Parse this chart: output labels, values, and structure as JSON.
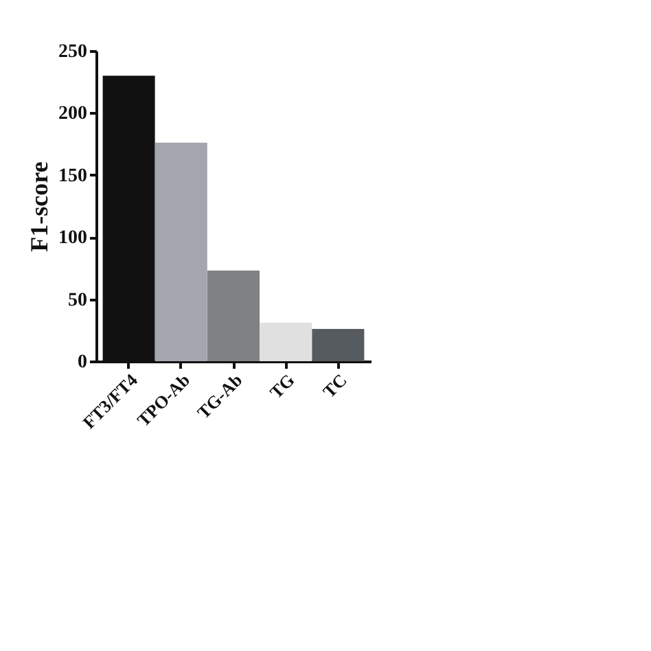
{
  "chart_data": {
    "type": "bar",
    "ylabel": "F1-score",
    "categories": [
      "FT3/FT4",
      "TPO-Ab",
      "TG-Ab",
      "TG",
      "TC"
    ],
    "values": [
      230,
      176,
      73,
      31,
      26
    ],
    "colors": [
      "#111111",
      "#a3a7ad",
      "#7f8283",
      "#e0e0e0",
      "#555b5e"
    ],
    "ylim": [
      0,
      250
    ],
    "yticks": [
      0,
      50,
      100,
      150,
      200,
      250
    ],
    "grid": false
  }
}
